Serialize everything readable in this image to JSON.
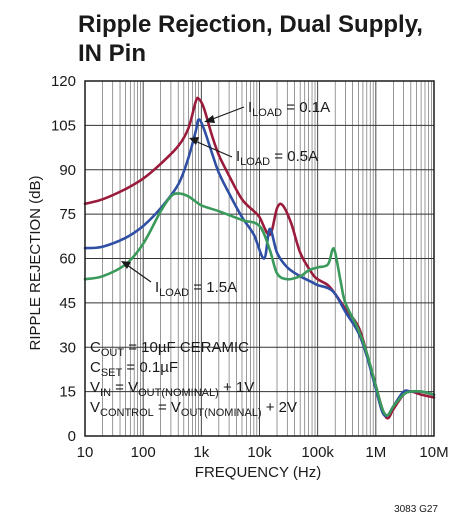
{
  "chart_data": {
    "type": "line",
    "title_lines": [
      "Ripple Rejection, Dual Supply,",
      "IN Pin"
    ],
    "xlabel": "FREQUENCY (Hz)",
    "ylabel": "RIPPLE REJECTION (dB)",
    "x_scale": "log",
    "xlim": [
      10,
      10000000
    ],
    "ylim": [
      0,
      120
    ],
    "x_ticks": [
      10,
      100,
      1000,
      10000,
      100000,
      1000000,
      10000000
    ],
    "x_tick_labels": [
      "10",
      "100",
      "1k",
      "10k",
      "100k",
      "1M",
      "10M"
    ],
    "y_ticks": [
      0,
      15,
      30,
      45,
      60,
      75,
      90,
      105,
      120
    ],
    "y_tick_labels": [
      "0",
      "15",
      "30",
      "45",
      "60",
      "75",
      "90",
      "105",
      "120"
    ],
    "grid": true,
    "series": [
      {
        "name": "ILOAD = 0.1A",
        "color": "#9b1b3c",
        "points": [
          [
            10,
            78.5
          ],
          [
            20,
            80
          ],
          [
            50,
            83.5
          ],
          [
            100,
            87
          ],
          [
            200,
            92
          ],
          [
            400,
            98
          ],
          [
            600,
            104
          ],
          [
            800,
            113
          ],
          [
            900,
            114
          ],
          [
            1100,
            111
          ],
          [
            1500,
            102
          ],
          [
            2000,
            95
          ],
          [
            3000,
            88
          ],
          [
            5000,
            80
          ],
          [
            8000,
            76
          ],
          [
            10000,
            74
          ],
          [
            15000,
            68
          ],
          [
            20000,
            77
          ],
          [
            25000,
            78
          ],
          [
            35000,
            72
          ],
          [
            50000,
            62
          ],
          [
            80000,
            55
          ],
          [
            100000,
            53
          ],
          [
            150000,
            51
          ],
          [
            200000,
            48
          ],
          [
            300000,
            43
          ],
          [
            500000,
            37
          ],
          [
            700000,
            28
          ],
          [
            1000000,
            17
          ],
          [
            1300000,
            9
          ],
          [
            1600000,
            6
          ],
          [
            2000000,
            9
          ],
          [
            3000000,
            14
          ],
          [
            4000000,
            15
          ],
          [
            6000000,
            14
          ],
          [
            10000000,
            13
          ]
        ]
      },
      {
        "name": "ILOAD = 0.5A",
        "color": "#2e4fa3",
        "points": [
          [
            10,
            63.5
          ],
          [
            20,
            64
          ],
          [
            50,
            67
          ],
          [
            100,
            71
          ],
          [
            200,
            77
          ],
          [
            400,
            85
          ],
          [
            600,
            94
          ],
          [
            800,
            103
          ],
          [
            900,
            107
          ],
          [
            1100,
            104
          ],
          [
            1500,
            96
          ],
          [
            2000,
            89
          ],
          [
            3000,
            82
          ],
          [
            5000,
            74
          ],
          [
            8000,
            68
          ],
          [
            12000,
            60
          ],
          [
            15000,
            70
          ],
          [
            20000,
            62
          ],
          [
            30000,
            57
          ],
          [
            50000,
            54
          ],
          [
            80000,
            52
          ],
          [
            100000,
            51
          ],
          [
            150000,
            50
          ],
          [
            200000,
            48
          ],
          [
            300000,
            42
          ],
          [
            500000,
            35
          ],
          [
            700000,
            27
          ],
          [
            1000000,
            16
          ],
          [
            1300000,
            8
          ],
          [
            1600000,
            7
          ],
          [
            2000000,
            10
          ],
          [
            3000000,
            15
          ],
          [
            4000000,
            15
          ],
          [
            6000000,
            15
          ],
          [
            10000000,
            14
          ]
        ]
      },
      {
        "name": "ILOAD = 1.5A",
        "color": "#3a9a5b",
        "points": [
          [
            10,
            53
          ],
          [
            20,
            54
          ],
          [
            50,
            58
          ],
          [
            100,
            65
          ],
          [
            200,
            76
          ],
          [
            300,
            81
          ],
          [
            400,
            82
          ],
          [
            600,
            81
          ],
          [
            1000,
            78
          ],
          [
            2000,
            76
          ],
          [
            5000,
            73
          ],
          [
            10000,
            71
          ],
          [
            15000,
            63
          ],
          [
            20000,
            55
          ],
          [
            30000,
            53
          ],
          [
            50000,
            54
          ],
          [
            70000,
            56
          ],
          [
            100000,
            57
          ],
          [
            150000,
            58
          ],
          [
            180000,
            63
          ],
          [
            200000,
            62
          ],
          [
            250000,
            52
          ],
          [
            300000,
            45
          ],
          [
            500000,
            36
          ],
          [
            700000,
            28
          ],
          [
            1000000,
            17
          ],
          [
            1300000,
            9
          ],
          [
            1600000,
            7
          ],
          [
            2000000,
            10
          ],
          [
            3000000,
            14
          ],
          [
            4000000,
            15
          ],
          [
            6000000,
            15
          ],
          [
            10000000,
            14
          ]
        ]
      }
    ],
    "labels": [
      {
        "main": "I",
        "sub": "LOAD",
        "rest": " = 0.1A"
      },
      {
        "main": "I",
        "sub": "LOAD",
        "rest": " = 0.5A"
      },
      {
        "main": "I",
        "sub": "LOAD",
        "rest": " = 1.5A"
      }
    ],
    "conditions": [
      {
        "a": "C",
        "a_sub": "OUT",
        "b": " = 10µF CERAMIC",
        "b_sub": "",
        "c": ""
      },
      {
        "a": "C",
        "a_sub": "SET",
        "b": " = 0.1µF",
        "b_sub": "",
        "c": ""
      },
      {
        "a": "V",
        "a_sub": "IN",
        "b": " = V",
        "b_sub": "OUT(NOMINAL)",
        "c": " + 1V"
      },
      {
        "a": "V",
        "a_sub": "CONTROL",
        "b": " = V",
        "b_sub": "OUT(NOMINAL)",
        "c": " + 2V"
      }
    ],
    "figure_code": "3083 G27"
  }
}
